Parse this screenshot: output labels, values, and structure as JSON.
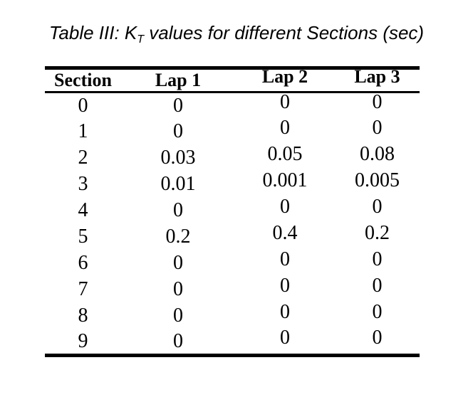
{
  "caption": {
    "before_subscript": "Table III: K",
    "subscript": "T",
    "after_subscript": " values for different Sections (sec)"
  },
  "table": {
    "column_headers": [
      "Section",
      "Lap 1",
      "Lap 2",
      "Lap 3"
    ],
    "rows": [
      [
        "0",
        "0",
        "0",
        "0"
      ],
      [
        "1",
        "0",
        "0",
        "0"
      ],
      [
        "2",
        "0.03",
        "0.05",
        "0.08"
      ],
      [
        "3",
        "0.01",
        "0.001",
        "0.005"
      ],
      [
        "4",
        "0",
        "0",
        "0"
      ],
      [
        "5",
        "0.2",
        "0.4",
        "0.2"
      ],
      [
        "6",
        "0",
        "0",
        "0"
      ],
      [
        "7",
        "0",
        "0",
        "0"
      ],
      [
        "8",
        "0",
        "0",
        "0"
      ],
      [
        "9",
        "0",
        "0",
        "0"
      ]
    ]
  },
  "colors": {
    "background": "#ffffff",
    "text": "#000000",
    "rule": "#000000"
  }
}
